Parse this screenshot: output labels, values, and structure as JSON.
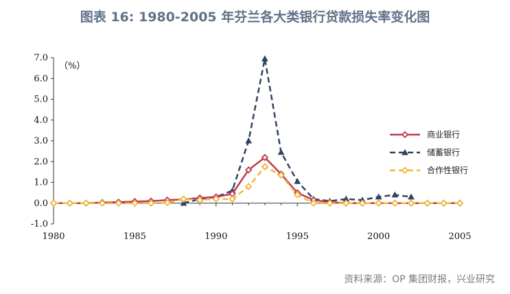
{
  "page": {
    "title": "图表 16: 1980-2005 年芬兰各大类银行贷款损失率变化图",
    "source": "资料来源：OP 集团财报，兴业研究"
  },
  "colors": {
    "commercial": "#c0394b",
    "savings": "#2e4360",
    "cooperative": "#f0b53a",
    "axis": "#333333"
  },
  "chart_data": {
    "type": "line",
    "ylabel": "（%）",
    "xlim": [
      1980,
      2005
    ],
    "ylim": [
      -1.0,
      7.0
    ],
    "x_ticks": [
      "1980",
      "1985",
      "1990",
      "1995",
      "2000",
      "2005"
    ],
    "y_ticks": [
      "7.0",
      "6.0",
      "5.0",
      "4.0",
      "3.0",
      "2.0",
      "1.0",
      "0.0",
      "-1.0"
    ],
    "legend_position": "right",
    "series": [
      {
        "name": "商业银行",
        "key": "commercial",
        "style": "solid",
        "marker": "diamond",
        "x": [
          1980,
          1981,
          1982,
          1983,
          1984,
          1985,
          1986,
          1987,
          1988,
          1989,
          1990,
          1991,
          1992,
          1993,
          1994,
          1995,
          1996,
          1997,
          1998,
          1999,
          2000,
          2001,
          2002,
          2003,
          2004,
          2005
        ],
        "y": [
          0.0,
          0.0,
          0.0,
          0.03,
          0.05,
          0.08,
          0.1,
          0.15,
          0.18,
          0.25,
          0.3,
          0.45,
          1.6,
          2.2,
          1.4,
          0.5,
          0.15,
          0.05,
          0.0,
          0.0,
          0.0,
          0.0,
          0.0,
          0.0,
          0.0,
          0.0
        ]
      },
      {
        "name": "储蓄银行",
        "key": "savings",
        "style": "dashed",
        "marker": "triangle",
        "x": [
          1988,
          1989,
          1990,
          1991,
          1992,
          1993,
          1994,
          1995,
          1996,
          1997,
          1998,
          1999,
          2000,
          2001,
          2002
        ],
        "y": [
          0.0,
          0.2,
          0.3,
          0.6,
          3.0,
          6.95,
          2.45,
          1.05,
          0.2,
          0.1,
          0.2,
          0.15,
          0.3,
          0.4,
          0.3
        ]
      },
      {
        "name": "合作性银行",
        "key": "cooperative",
        "style": "dashed",
        "marker": "diamond",
        "x": [
          1980,
          1981,
          1982,
          1983,
          1984,
          1985,
          1986,
          1987,
          1988,
          1989,
          1990,
          1991,
          1992,
          1993,
          1994,
          1995,
          1996,
          1997,
          1998,
          1999,
          2000,
          2001,
          2002,
          2003,
          2004,
          2005
        ],
        "y": [
          0.0,
          0.0,
          0.0,
          0.0,
          0.0,
          0.0,
          0.0,
          0.02,
          0.2,
          0.15,
          0.2,
          0.2,
          0.8,
          1.75,
          1.35,
          0.4,
          0.0,
          0.0,
          0.0,
          0.0,
          0.0,
          0.0,
          0.0,
          0.0,
          0.0,
          0.0
        ]
      }
    ]
  }
}
